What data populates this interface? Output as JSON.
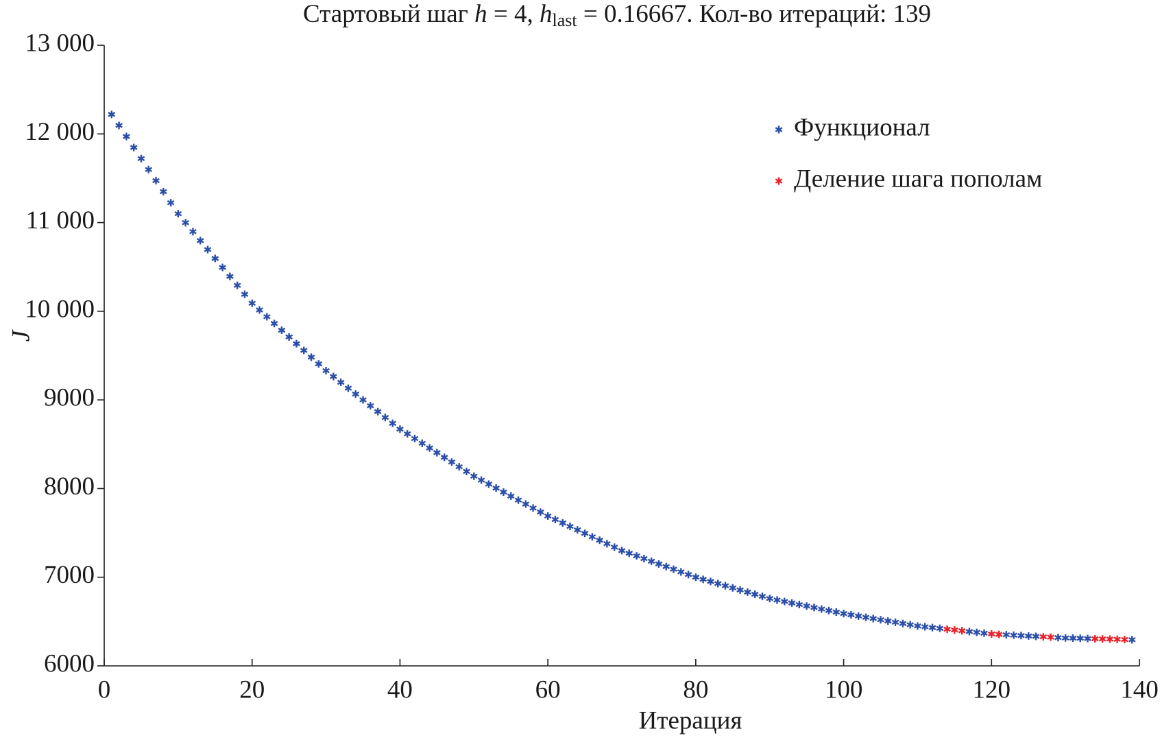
{
  "chart_data": {
    "type": "scatter",
    "title": [
      "Стартовый шаг ",
      "h",
      " = 4, ",
      "h",
      "last",
      " = 0.16667. Кол-во итераций: 139"
    ],
    "x_label": "Итерация",
    "y_label": "J",
    "xlim": [
      0,
      140
    ],
    "xticks": [
      0,
      20,
      40,
      60,
      80,
      100,
      120,
      140
    ],
    "ylim": [
      6000,
      13000
    ],
    "yticks": [
      6000,
      7000,
      8000,
      9000,
      {
        "value": 10000,
        "label": "10 000"
      },
      {
        "value": 11000,
        "label": "11 000"
      },
      {
        "value": 12000,
        "label": "12 000"
      },
      {
        "value": 13000,
        "label": "13 000"
      }
    ],
    "grid": false,
    "legend": "upper right",
    "series": [
      {
        "name": "Функционал",
        "color": "#2b4ea8",
        "x": [
          1,
          2,
          3,
          4,
          5,
          6,
          7,
          8,
          9,
          10,
          11,
          12,
          13,
          14,
          15,
          16,
          17,
          18,
          19,
          20,
          21,
          22,
          23,
          24,
          25,
          26,
          27,
          28,
          29,
          30,
          31,
          32,
          33,
          34,
          35,
          36,
          37,
          38,
          39,
          40,
          41,
          42,
          43,
          44,
          45,
          46,
          47,
          48,
          49,
          50,
          51,
          52,
          53,
          54,
          55,
          56,
          57,
          58,
          59,
          60,
          61,
          62,
          63,
          64,
          65,
          66,
          67,
          68,
          69,
          70,
          71,
          72,
          73,
          74,
          75,
          76,
          77,
          78,
          79,
          80,
          81,
          82,
          83,
          84,
          85,
          86,
          87,
          88,
          89,
          90,
          91,
          92,
          93,
          94,
          95,
          96,
          97,
          98,
          99,
          100,
          101,
          102,
          103,
          104,
          105,
          106,
          107,
          108,
          109,
          110,
          111,
          112,
          113,
          117,
          118,
          119,
          122,
          123,
          124,
          125,
          126,
          129,
          130,
          131,
          132,
          133,
          139
        ],
        "values": [
          12220,
          12096,
          11971,
          11847,
          11722,
          11598,
          11473,
          11349,
          11224,
          11100,
          10999,
          10898,
          10797,
          10696,
          10595,
          10494,
          10393,
          10292,
          10191,
          10090,
          10014,
          9938,
          9862,
          9786,
          9710,
          9634,
          9558,
          9482,
          9406,
          9330,
          9264,
          9198,
          9132,
          9066,
          9000,
          8934,
          8868,
          8802,
          8736,
          8670,
          8617,
          8564,
          8511,
          8458,
          8405,
          8352,
          8299,
          8246,
          8193,
          8140,
          8095,
          8050,
          8005,
          7960,
          7915,
          7870,
          7825,
          7780,
          7735,
          7690,
          7651,
          7612,
          7573,
          7534,
          7495,
          7456,
          7417,
          7378,
          7339,
          7300,
          7270,
          7240,
          7210,
          7180,
          7150,
          7120,
          7090,
          7060,
          7030,
          7000,
          6976,
          6952,
          6928,
          6904,
          6880,
          6856,
          6832,
          6808,
          6784,
          6760,
          6743,
          6726,
          6709,
          6692,
          6675,
          6658,
          6641,
          6624,
          6607,
          6590,
          6576,
          6562,
          6548,
          6534,
          6520,
          6506,
          6492,
          6478,
          6464,
          6450,
          6441,
          6432,
          6423,
          6387,
          6378,
          6369,
          6351,
          6346,
          6342,
          6337,
          6333,
          6319,
          6315,
          6313,
          6311,
          6308,
          6295
        ]
      },
      {
        "name": "Деление шага пополам",
        "color": "#e8202a",
        "x": [
          114,
          115,
          116,
          120,
          121,
          127,
          128,
          134,
          135,
          136,
          137,
          138
        ],
        "values": [
          6414,
          6405,
          6396,
          6360,
          6355,
          6328,
          6324,
          6306,
          6304,
          6302,
          6300,
          6297
        ]
      }
    ]
  }
}
